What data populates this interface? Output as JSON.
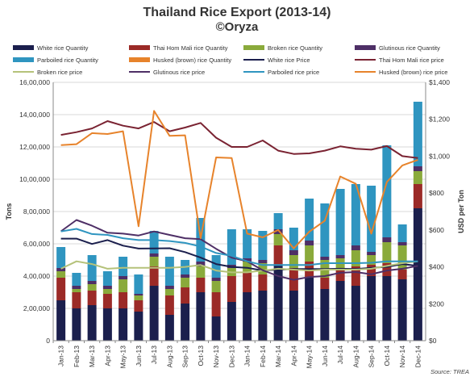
{
  "chart_data": {
    "type": "bar",
    "title": "Thailand Rice Export (2013-14)",
    "subtitle": "©Oryza",
    "source": "Source: TREA",
    "ylabel": "Tons",
    "y2label": "USD per Ton",
    "ylim": [
      0,
      16000000
    ],
    "y2lim": [
      0,
      1400
    ],
    "yticks": [
      "0",
      "2,00,000",
      "4,00,000",
      "6,00,000",
      "8,00,000",
      "10,00,000",
      "12,00,000",
      "14,00,000",
      "16,00,000"
    ],
    "y2ticks": [
      "$0",
      "$200",
      "$400",
      "$600",
      "$800",
      "$1,000",
      "$1,200",
      "$1,400"
    ],
    "grid": true,
    "legend_position": "top",
    "categories": [
      "Jan-13",
      "Feb-13",
      "Mar-13",
      "Apr-13",
      "May-13",
      "Jun-13",
      "Jul-13",
      "Aug-13",
      "Sep-13",
      "Oct-13",
      "Nov-13",
      "Dec-13",
      "Jan-14",
      "Feb-14",
      "Mar-14",
      "Apr-14",
      "May-14",
      "Jun-14",
      "Jul-14",
      "Aug-14",
      "Sep-14",
      "Oct-14",
      "Nov-14",
      "Dec-14"
    ],
    "bar_series": [
      {
        "name": "White rice Quantity",
        "color": "#1b1f4d",
        "values": [
          2500000,
          2000000,
          2200000,
          2000000,
          2000000,
          1800000,
          3400000,
          1600000,
          2300000,
          3000000,
          1500000,
          2400000,
          3000000,
          3100000,
          4700000,
          3100000,
          3900000,
          3200000,
          3700000,
          3400000,
          4000000,
          4000000,
          3800000,
          8200000
        ]
      },
      {
        "name": "Thai Hom Mali rice Quantity",
        "color": "#9b2a27",
        "values": [
          1400000,
          1000000,
          900000,
          900000,
          1000000,
          700000,
          1200000,
          1200000,
          1000000,
          900000,
          1500000,
          1600000,
          1200000,
          1000000,
          1200000,
          1400000,
          1000000,
          700000,
          700000,
          1200000,
          700000,
          800000,
          600000,
          1500000
        ]
      },
      {
        "name": "Broken rice Quantity",
        "color": "#8aaa3b",
        "values": [
          400000,
          200000,
          400000,
          300000,
          800000,
          300000,
          600000,
          400000,
          600000,
          700000,
          700000,
          500000,
          700000,
          700000,
          700000,
          800000,
          1000000,
          1100000,
          700000,
          1000000,
          600000,
          1300000,
          1500000,
          800000
        ]
      },
      {
        "name": "Glutinous rice Quantity",
        "color": "#4e2f66",
        "values": [
          200000,
          200000,
          200000,
          200000,
          200000,
          100000,
          200000,
          200000,
          200000,
          300000,
          200000,
          200000,
          200000,
          200000,
          300000,
          300000,
          300000,
          200000,
          200000,
          300000,
          200000,
          300000,
          200000,
          300000
        ]
      },
      {
        "name": "Parboiled rice Quantity",
        "color": "#2f95c0",
        "values": [
          1300000,
          800000,
          1600000,
          900000,
          1200000,
          1200000,
          1400000,
          1800000,
          900000,
          2700000,
          1400000,
          2200000,
          1800000,
          1800000,
          1000000,
          1400000,
          2600000,
          3300000,
          4100000,
          3800000,
          4100000,
          5700000,
          1100000,
          4000000
        ]
      },
      {
        "name": "Husked (brown) rice Quantity",
        "color": "#e7832b",
        "values": [
          0,
          0,
          0,
          0,
          0,
          0,
          0,
          0,
          0,
          0,
          0,
          0,
          0,
          0,
          0,
          0,
          0,
          0,
          0,
          0,
          0,
          0,
          0,
          0
        ]
      }
    ],
    "line_series": [
      {
        "name": "White rice Price",
        "color": "#1b1f4d",
        "values": [
          553,
          553,
          524,
          545,
          515,
          499,
          500,
          501,
          480,
          450,
          415,
          400,
          395,
          380,
          385,
          388,
          388,
          388,
          390,
          388,
          395,
          400,
          415,
          405
        ]
      },
      {
        "name": "Thai Hom Mali rice price",
        "color": "#7a2332",
        "values": [
          1115,
          1130,
          1150,
          1190,
          1165,
          1150,
          1185,
          1135,
          1155,
          1180,
          1100,
          1050,
          1050,
          1085,
          1030,
          1012,
          1015,
          1030,
          1053,
          1040,
          1035,
          1055,
          1000,
          990
        ]
      },
      {
        "name": "Broken rice price",
        "color": "#b5c27a",
        "values": [
          390,
          430,
          415,
          390,
          395,
          395,
          395,
          395,
          400,
          410,
          380,
          370,
          370,
          380,
          390,
          385,
          380,
          385,
          385,
          385,
          390,
          405,
          420,
          430
        ]
      },
      {
        "name": "Glutinous rice price",
        "color": "#4e2f66",
        "values": [
          593,
          654,
          623,
          585,
          580,
          570,
          592,
          573,
          555,
          550,
          498,
          450,
          430,
          382,
          350,
          330,
          345,
          350,
          368,
          372,
          360,
          380,
          390,
          405
        ]
      },
      {
        "name": "Parboiled rice price",
        "color": "#2f95c0",
        "values": [
          592,
          606,
          578,
          573,
          555,
          545,
          545,
          540,
          530,
          510,
          475,
          460,
          430,
          410,
          410,
          410,
          410,
          420,
          420,
          420,
          422,
          430,
          430,
          430
        ]
      },
      {
        "name": "Husked (brown) rice price",
        "color": "#e7832b",
        "values": [
          1060,
          1065,
          1125,
          1120,
          1135,
          620,
          1245,
          1110,
          1113,
          555,
          993,
          990,
          580,
          560,
          600,
          500,
          590,
          650,
          890,
          850,
          580,
          860,
          950,
          980
        ]
      }
    ],
    "legend_rows": [
      [
        "White rice Quantity",
        "Thai Hom Mali rice Quantity",
        "Broken rice Quantity",
        "Glutinous rice Quantity"
      ],
      [
        "Parboiled rice Quantity",
        "Husked (brown) rice Quantity",
        "White rice Price",
        "Thai Hom Mali rice price"
      ],
      [
        "Broken rice price",
        "Glutinous rice price",
        "Parboiled rice price",
        "Husked (brown) rice price"
      ]
    ]
  }
}
